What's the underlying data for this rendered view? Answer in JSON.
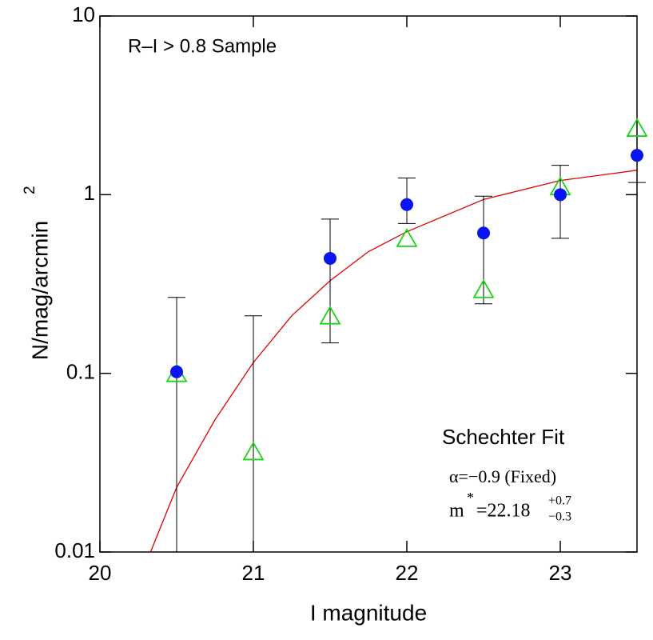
{
  "chart_data": {
    "type": "scatter",
    "xlabel": "I magnitude",
    "ylabel": "N/mag/arcmin",
    "ylabel_sup": "2",
    "sample_label": "R–I > 0.8 Sample",
    "fit_title": "Schechter Fit",
    "fit_alpha": "α=−0.9 (Fixed)",
    "fit_m": {
      "symbol": "m",
      "sup": "*",
      "value": "=22.18",
      "plus": "+0.7",
      "minus": "−0.3"
    },
    "x": [
      20.5,
      21,
      21.5,
      22,
      22.5,
      23,
      23.5
    ],
    "series": [
      {
        "marker": "circle",
        "color": "#0a14ee",
        "values": [
          0.102,
          null,
          0.44,
          0.88,
          0.61,
          1.0,
          1.66
        ],
        "low": [
          null,
          null,
          0.148,
          0.69,
          0.245,
          0.57,
          1.17
        ],
        "high": [
          0.266,
          0.21,
          0.73,
          1.24,
          0.98,
          1.46,
          null
        ]
      },
      {
        "marker": "triangle",
        "color": "#19d419",
        "values": [
          0.1,
          0.0365,
          0.21,
          0.57,
          0.295,
          1.11,
          2.36
        ]
      }
    ],
    "fit_curve": {
      "color": "#e00000",
      "x": [
        20.33,
        20.5,
        20.75,
        21,
        21.25,
        21.5,
        21.75,
        22,
        22.5,
        23,
        23.5
      ],
      "values": [
        0.01,
        0.023,
        0.055,
        0.115,
        0.21,
        0.33,
        0.48,
        0.62,
        0.94,
        1.2,
        1.37
      ]
    },
    "xlim": [
      20,
      23.5
    ],
    "xticks": [
      20,
      21,
      22,
      23
    ],
    "ylim": [
      0.01,
      10
    ],
    "yticks": [
      0.01,
      0.1,
      1,
      10
    ],
    "ylog": true
  }
}
